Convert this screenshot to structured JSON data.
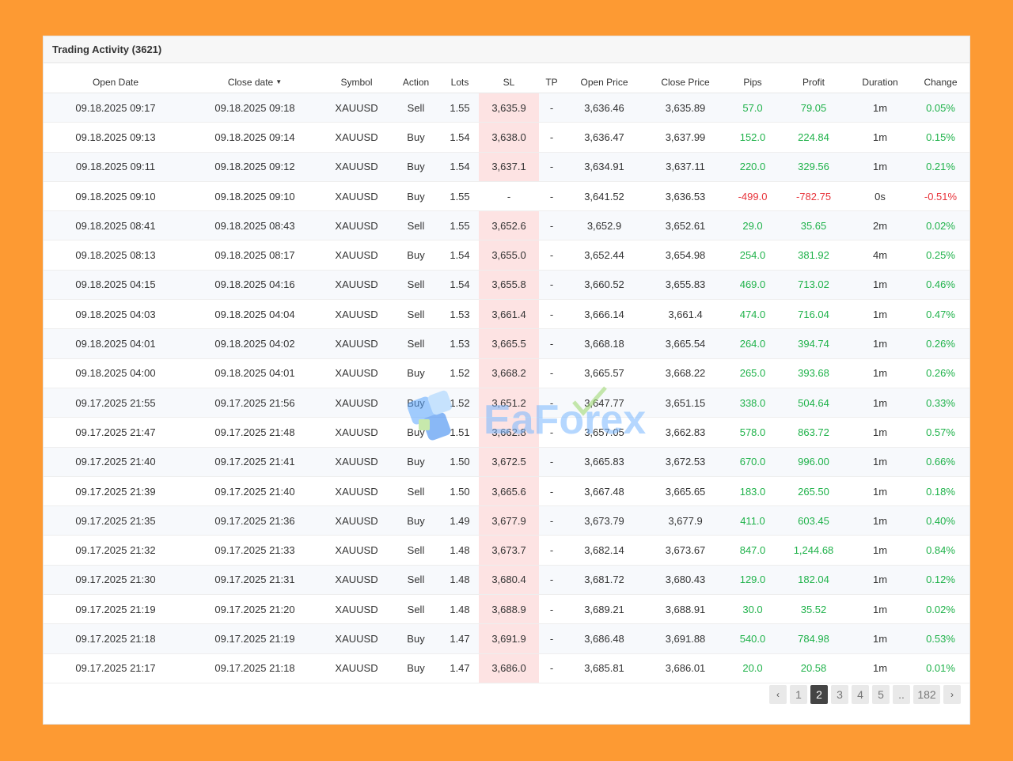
{
  "panel": {
    "title": "Trading Activity (3621)"
  },
  "columns": [
    "Open Date",
    "Close date",
    "Symbol",
    "Action",
    "Lots",
    "SL",
    "TP",
    "Open Price",
    "Close Price",
    "Pips",
    "Profit",
    "Duration",
    "Change"
  ],
  "sort_indicator": "▼",
  "rows": [
    {
      "open": "09.18.2025 09:17",
      "close": "09.18.2025 09:18",
      "symbol": "XAUUSD",
      "action": "Sell",
      "lots": "1.55",
      "sl": "3,635.9",
      "tp": "-",
      "open_price": "3,636.46",
      "close_price": "3,635.89",
      "pips": "57.0",
      "profit": "79.05",
      "duration": "1m",
      "change": "0.05%",
      "positive": true
    },
    {
      "open": "09.18.2025 09:13",
      "close": "09.18.2025 09:14",
      "symbol": "XAUUSD",
      "action": "Buy",
      "lots": "1.54",
      "sl": "3,638.0",
      "tp": "-",
      "open_price": "3,636.47",
      "close_price": "3,637.99",
      "pips": "152.0",
      "profit": "224.84",
      "duration": "1m",
      "change": "0.15%",
      "positive": true
    },
    {
      "open": "09.18.2025 09:11",
      "close": "09.18.2025 09:12",
      "symbol": "XAUUSD",
      "action": "Buy",
      "lots": "1.54",
      "sl": "3,637.1",
      "tp": "-",
      "open_price": "3,634.91",
      "close_price": "3,637.11",
      "pips": "220.0",
      "profit": "329.56",
      "duration": "1m",
      "change": "0.21%",
      "positive": true
    },
    {
      "open": "09.18.2025 09:10",
      "close": "09.18.2025 09:10",
      "symbol": "XAUUSD",
      "action": "Buy",
      "lots": "1.55",
      "sl": "-",
      "tp": "-",
      "open_price": "3,641.52",
      "close_price": "3,636.53",
      "pips": "-499.0",
      "profit": "-782.75",
      "duration": "0s",
      "change": "-0.51%",
      "positive": false
    },
    {
      "open": "09.18.2025 08:41",
      "close": "09.18.2025 08:43",
      "symbol": "XAUUSD",
      "action": "Sell",
      "lots": "1.55",
      "sl": "3,652.6",
      "tp": "-",
      "open_price": "3,652.9",
      "close_price": "3,652.61",
      "pips": "29.0",
      "profit": "35.65",
      "duration": "2m",
      "change": "0.02%",
      "positive": true
    },
    {
      "open": "09.18.2025 08:13",
      "close": "09.18.2025 08:17",
      "symbol": "XAUUSD",
      "action": "Buy",
      "lots": "1.54",
      "sl": "3,655.0",
      "tp": "-",
      "open_price": "3,652.44",
      "close_price": "3,654.98",
      "pips": "254.0",
      "profit": "381.92",
      "duration": "4m",
      "change": "0.25%",
      "positive": true
    },
    {
      "open": "09.18.2025 04:15",
      "close": "09.18.2025 04:16",
      "symbol": "XAUUSD",
      "action": "Sell",
      "lots": "1.54",
      "sl": "3,655.8",
      "tp": "-",
      "open_price": "3,660.52",
      "close_price": "3,655.83",
      "pips": "469.0",
      "profit": "713.02",
      "duration": "1m",
      "change": "0.46%",
      "positive": true
    },
    {
      "open": "09.18.2025 04:03",
      "close": "09.18.2025 04:04",
      "symbol": "XAUUSD",
      "action": "Sell",
      "lots": "1.53",
      "sl": "3,661.4",
      "tp": "-",
      "open_price": "3,666.14",
      "close_price": "3,661.4",
      "pips": "474.0",
      "profit": "716.04",
      "duration": "1m",
      "change": "0.47%",
      "positive": true
    },
    {
      "open": "09.18.2025 04:01",
      "close": "09.18.2025 04:02",
      "symbol": "XAUUSD",
      "action": "Sell",
      "lots": "1.53",
      "sl": "3,665.5",
      "tp": "-",
      "open_price": "3,668.18",
      "close_price": "3,665.54",
      "pips": "264.0",
      "profit": "394.74",
      "duration": "1m",
      "change": "0.26%",
      "positive": true
    },
    {
      "open": "09.18.2025 04:00",
      "close": "09.18.2025 04:01",
      "symbol": "XAUUSD",
      "action": "Buy",
      "lots": "1.52",
      "sl": "3,668.2",
      "tp": "-",
      "open_price": "3,665.57",
      "close_price": "3,668.22",
      "pips": "265.0",
      "profit": "393.68",
      "duration": "1m",
      "change": "0.26%",
      "positive": true
    },
    {
      "open": "09.17.2025 21:55",
      "close": "09.17.2025 21:56",
      "symbol": "XAUUSD",
      "action": "Buy",
      "lots": "1.52",
      "sl": "3,651.2",
      "tp": "-",
      "open_price": "3,647.77",
      "close_price": "3,651.15",
      "pips": "338.0",
      "profit": "504.64",
      "duration": "1m",
      "change": "0.33%",
      "positive": true
    },
    {
      "open": "09.17.2025 21:47",
      "close": "09.17.2025 21:48",
      "symbol": "XAUUSD",
      "action": "Buy",
      "lots": "1.51",
      "sl": "3,662.8",
      "tp": "-",
      "open_price": "3,657.05",
      "close_price": "3,662.83",
      "pips": "578.0",
      "profit": "863.72",
      "duration": "1m",
      "change": "0.57%",
      "positive": true
    },
    {
      "open": "09.17.2025 21:40",
      "close": "09.17.2025 21:41",
      "symbol": "XAUUSD",
      "action": "Buy",
      "lots": "1.50",
      "sl": "3,672.5",
      "tp": "-",
      "open_price": "3,665.83",
      "close_price": "3,672.53",
      "pips": "670.0",
      "profit": "996.00",
      "duration": "1m",
      "change": "0.66%",
      "positive": true
    },
    {
      "open": "09.17.2025 21:39",
      "close": "09.17.2025 21:40",
      "symbol": "XAUUSD",
      "action": "Sell",
      "lots": "1.50",
      "sl": "3,665.6",
      "tp": "-",
      "open_price": "3,667.48",
      "close_price": "3,665.65",
      "pips": "183.0",
      "profit": "265.50",
      "duration": "1m",
      "change": "0.18%",
      "positive": true
    },
    {
      "open": "09.17.2025 21:35",
      "close": "09.17.2025 21:36",
      "symbol": "XAUUSD",
      "action": "Buy",
      "lots": "1.49",
      "sl": "3,677.9",
      "tp": "-",
      "open_price": "3,673.79",
      "close_price": "3,677.9",
      "pips": "411.0",
      "profit": "603.45",
      "duration": "1m",
      "change": "0.40%",
      "positive": true
    },
    {
      "open": "09.17.2025 21:32",
      "close": "09.17.2025 21:33",
      "symbol": "XAUUSD",
      "action": "Sell",
      "lots": "1.48",
      "sl": "3,673.7",
      "tp": "-",
      "open_price": "3,682.14",
      "close_price": "3,673.67",
      "pips": "847.0",
      "profit": "1,244.68",
      "duration": "1m",
      "change": "0.84%",
      "positive": true
    },
    {
      "open": "09.17.2025 21:30",
      "close": "09.17.2025 21:31",
      "symbol": "XAUUSD",
      "action": "Sell",
      "lots": "1.48",
      "sl": "3,680.4",
      "tp": "-",
      "open_price": "3,681.72",
      "close_price": "3,680.43",
      "pips": "129.0",
      "profit": "182.04",
      "duration": "1m",
      "change": "0.12%",
      "positive": true
    },
    {
      "open": "09.17.2025 21:19",
      "close": "09.17.2025 21:20",
      "symbol": "XAUUSD",
      "action": "Sell",
      "lots": "1.48",
      "sl": "3,688.9",
      "tp": "-",
      "open_price": "3,689.21",
      "close_price": "3,688.91",
      "pips": "30.0",
      "profit": "35.52",
      "duration": "1m",
      "change": "0.02%",
      "positive": true
    },
    {
      "open": "09.17.2025 21:18",
      "close": "09.17.2025 21:19",
      "symbol": "XAUUSD",
      "action": "Buy",
      "lots": "1.47",
      "sl": "3,691.9",
      "tp": "-",
      "open_price": "3,686.48",
      "close_price": "3,691.88",
      "pips": "540.0",
      "profit": "784.98",
      "duration": "1m",
      "change": "0.53%",
      "positive": true
    },
    {
      "open": "09.17.2025 21:17",
      "close": "09.17.2025 21:18",
      "symbol": "XAUUSD",
      "action": "Buy",
      "lots": "1.47",
      "sl": "3,686.0",
      "tp": "-",
      "open_price": "3,685.81",
      "close_price": "3,686.01",
      "pips": "20.0",
      "profit": "20.58",
      "duration": "1m",
      "change": "0.01%",
      "positive": true
    }
  ],
  "pagination": {
    "prev": "‹",
    "pages": [
      "1",
      "2",
      "3",
      "4",
      "5",
      "..",
      "182"
    ],
    "active": "2",
    "next": "›"
  },
  "watermark": {
    "text": "EaForex"
  },
  "colors": {
    "background": "#fd9a33",
    "positive": "#1fb24a",
    "negative": "#e8333a",
    "sl_highlight": "#fde3e3"
  }
}
